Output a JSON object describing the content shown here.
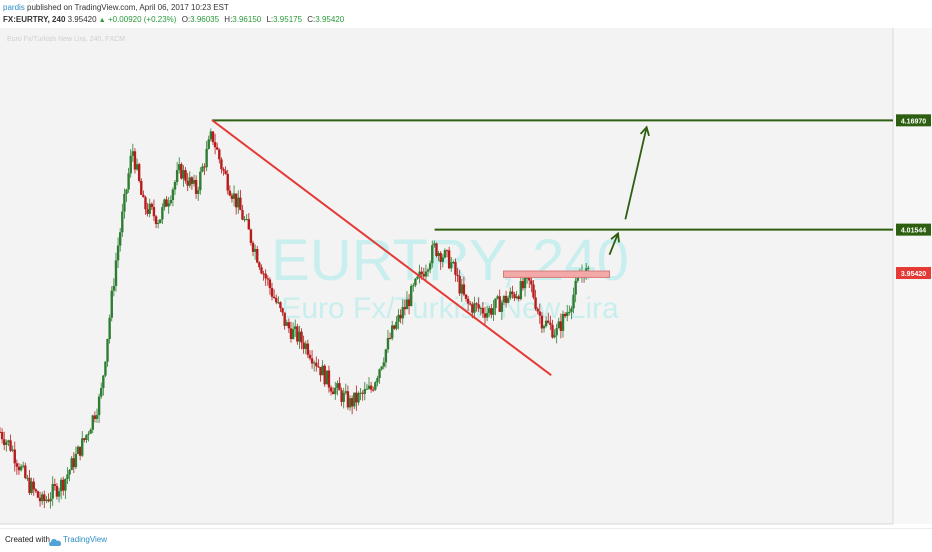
{
  "header": {
    "author": "pardis",
    "published_text": "published on TradingView.com, April 06, 2017 10:23 EST",
    "symbol": "FX:EURTRY, 240",
    "last_price": "3.95420",
    "change": "+0.00920 (+0.23%)",
    "ohlc": [
      {
        "label": "O:",
        "value": "3.96035"
      },
      {
        "label": "H:",
        "value": "3.96150"
      },
      {
        "label": "L:",
        "value": "3.95175"
      },
      {
        "label": "C:",
        "value": "3.95420"
      }
    ]
  },
  "footer": {
    "created_with": "Created with",
    "brand": "TradingView"
  },
  "colors": {
    "up_candle": "#2e7d32",
    "down_candle": "#b71c1c",
    "trendline": "#e53935",
    "level_line": "#2e5f10",
    "zone_fill": "#f4a9a9",
    "current_price_label": "#e53935",
    "watermark": "#b4ecec"
  },
  "chart_data": {
    "type": "candlestick",
    "watermark": {
      "symbol": "EURTRY, 240",
      "description": "Euro Fx/Turkish New Lira"
    },
    "legend_faded": "Euro Fx/Turkish New Lira, 240, FXCM",
    "price_range": [
      3.6,
      4.3
    ],
    "price_scale_labels": [
      {
        "price": 4.1697,
        "text": "4.16970",
        "style": "level"
      },
      {
        "price": 4.01544,
        "text": "4.01544",
        "style": "level"
      },
      {
        "price": 3.9542,
        "text": "3.95420",
        "style": "current"
      }
    ],
    "trendline": {
      "from": {
        "bar": 2.0,
        "price": 4.17
      },
      "to": {
        "bar": 5.2,
        "price": 3.81
      }
    },
    "horizontal_levels": [
      {
        "price": 4.1697,
        "from_bar": 2.0
      },
      {
        "price": 4.01544,
        "from_bar": 4.1
      }
    ],
    "zone": {
      "from_bar": 4.75,
      "to_bar": 5.75,
      "price_top": 3.957,
      "price_bottom": 3.948
    },
    "arrows": [
      {
        "from": {
          "bar": 5.75,
          "price": 3.98
        },
        "to": {
          "bar": 5.83,
          "price": 4.01
        }
      },
      {
        "from": {
          "bar": 5.9,
          "price": 4.03
        },
        "to": {
          "bar": 6.1,
          "price": 4.16
        }
      }
    ],
    "path_nodes": [
      [
        0.0,
        3.73
      ],
      [
        0.1,
        3.71
      ],
      [
        0.25,
        3.66
      ],
      [
        0.4,
        3.63
      ],
      [
        0.6,
        3.66
      ],
      [
        0.8,
        3.72
      ],
      [
        0.95,
        3.78
      ],
      [
        1.1,
        3.98
      ],
      [
        1.25,
        4.13
      ],
      [
        1.35,
        4.05
      ],
      [
        1.5,
        4.03
      ],
      [
        1.7,
        4.1
      ],
      [
        1.85,
        4.07
      ],
      [
        2.0,
        4.15
      ],
      [
        2.1,
        4.1
      ],
      [
        2.3,
        4.03
      ],
      [
        2.5,
        3.95
      ],
      [
        2.7,
        3.88
      ],
      [
        2.9,
        3.85
      ],
      [
        3.1,
        3.8
      ],
      [
        3.3,
        3.77
      ],
      [
        3.5,
        3.79
      ],
      [
        3.7,
        3.87
      ],
      [
        3.9,
        3.93
      ],
      [
        4.1,
        3.99
      ],
      [
        4.25,
        3.97
      ],
      [
        4.4,
        3.91
      ],
      [
        4.6,
        3.9
      ],
      [
        4.8,
        3.92
      ],
      [
        5.0,
        3.94
      ],
      [
        5.1,
        3.89
      ],
      [
        5.25,
        3.87
      ],
      [
        5.35,
        3.9
      ],
      [
        5.5,
        3.96
      ],
      [
        5.55,
        3.95
      ]
    ],
    "candle_count": 280
  }
}
